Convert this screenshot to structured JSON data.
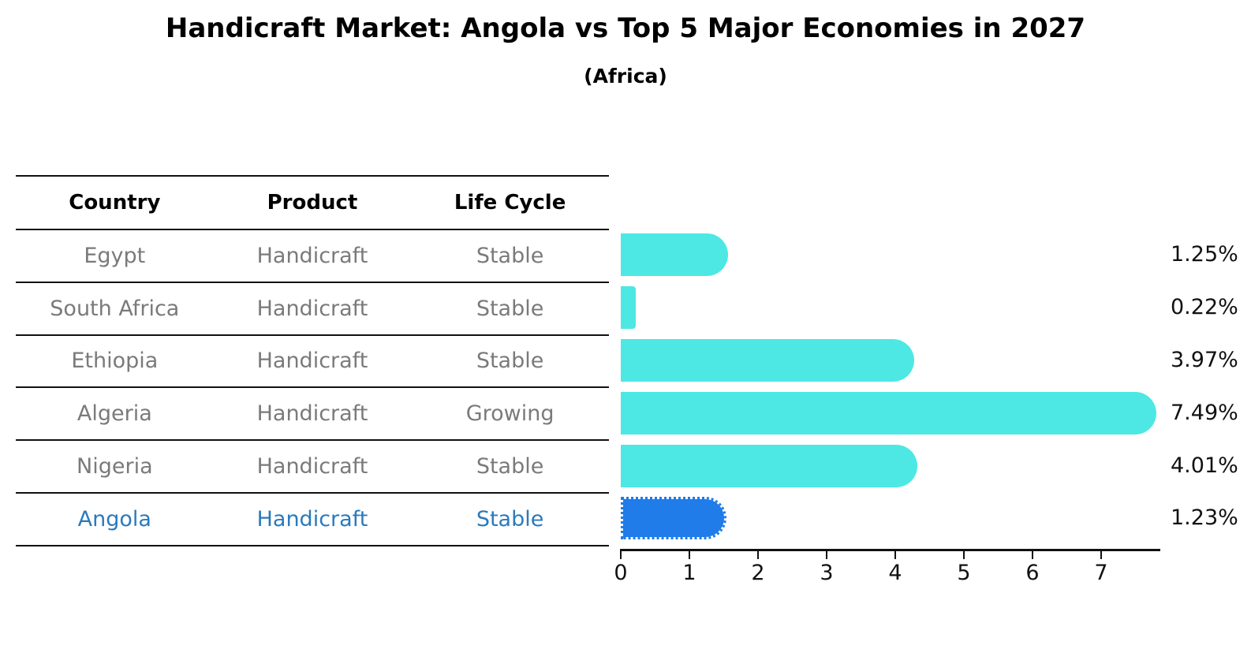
{
  "title": "Handicraft Market: Angola vs Top 5 Major Economies in 2027",
  "subtitle": "(Africa)",
  "table": {
    "headers": [
      "Country",
      "Product",
      "Life Cycle"
    ],
    "rows": [
      {
        "country": "Egypt",
        "product": "Handicraft",
        "life_cycle": "Stable",
        "highlight": false
      },
      {
        "country": "South Africa",
        "product": "Handicraft",
        "life_cycle": "Stable",
        "highlight": false
      },
      {
        "country": "Ethiopia",
        "product": "Handicraft",
        "life_cycle": "Stable",
        "highlight": false
      },
      {
        "country": "Algeria",
        "product": "Handicraft",
        "life_cycle": "Growing",
        "highlight": false
      },
      {
        "country": "Nigeria",
        "product": "Handicraft",
        "life_cycle": "Stable",
        "highlight": false
      },
      {
        "country": "Angola",
        "product": "Handicraft",
        "life_cycle": "Stable",
        "highlight": true
      }
    ]
  },
  "chart_data": {
    "type": "bar",
    "orientation": "horizontal",
    "title": "Handicraft Market: Angola vs Top 5 Major Economies in 2027",
    "subtitle": "(Africa)",
    "categories": [
      "Egypt",
      "South Africa",
      "Ethiopia",
      "Algeria",
      "Nigeria",
      "Angola"
    ],
    "values": [
      1.25,
      0.22,
      3.97,
      7.49,
      4.01,
      1.23
    ],
    "value_labels": [
      "1.25%",
      "0.22%",
      "3.97%",
      "7.49%",
      "4.01%",
      "1.23%"
    ],
    "unit": "%",
    "xticks": [
      "0",
      "1",
      "2",
      "3",
      "4",
      "5",
      "6",
      "7"
    ],
    "xlim": [
      0,
      7.85
    ],
    "grid": false,
    "legend": false,
    "highlight_index": 5,
    "bar_color": "#4DE8E4",
    "highlight_bar_color": "#1F7CE8",
    "highlight_text_color": "#2A7ABC",
    "row_text_color": "#7A7A7A",
    "axis_color": "#111111"
  }
}
